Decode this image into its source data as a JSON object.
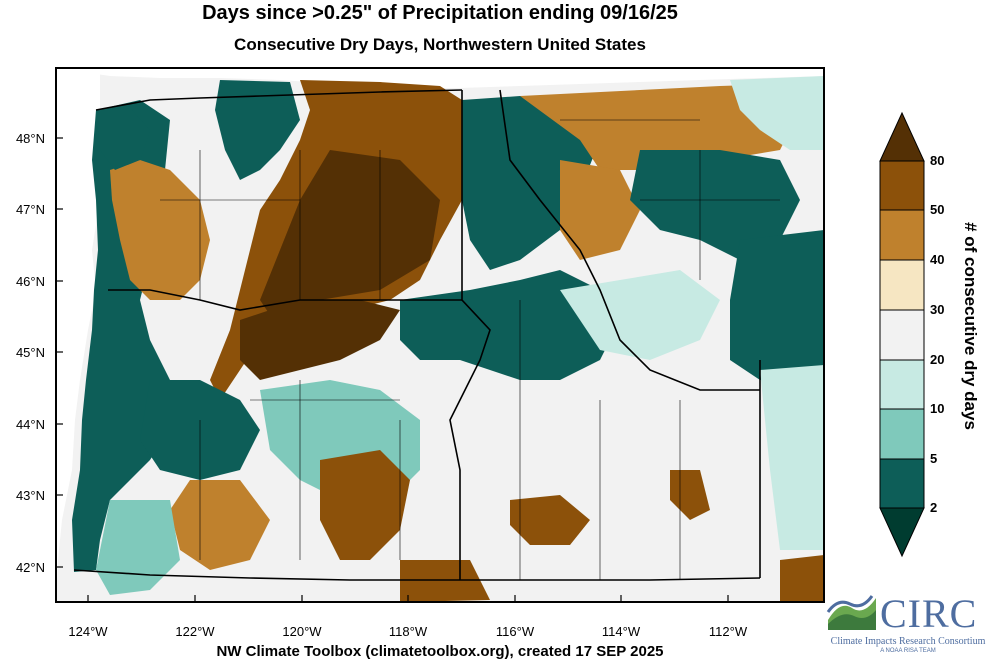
{
  "header": {
    "title": "Days since >0.25\" of Precipitation ending 09/16/25",
    "subtitle": "Consecutive Dry Days, Northwestern United States"
  },
  "footer": {
    "credit": "NW Climate Toolbox (climatetoolbox.org), created 17 SEP 2025"
  },
  "map": {
    "latitude_labels": [
      "48°N",
      "47°N",
      "46°N",
      "45°N",
      "44°N",
      "43°N",
      "42°N"
    ],
    "longitude_labels": [
      "124°W",
      "122°W",
      "120°W",
      "118°W",
      "116°W",
      "114°W",
      "112°W"
    ],
    "colors": {
      "bin_2_5": "#0d5e58",
      "bin_5_10": "#7fc9bb",
      "bin_10_20": "#c7eae3",
      "bin_20_30": "#f2f2f2",
      "bin_30_40": "#f6e6c2",
      "bin_40_50": "#bf812d",
      "bin_50_80": "#8c510a",
      "bin_over_80": "#543005",
      "bin_under_2": "#003c30",
      "water": "#ffffff"
    }
  },
  "legend": {
    "title": "# of consecutive dry days",
    "labels": [
      "2",
      "5",
      "10",
      "20",
      "30",
      "40",
      "50",
      "80"
    ],
    "colors": [
      "#003c30",
      "#0d5e58",
      "#7fc9bb",
      "#c7eae3",
      "#f2f2f2",
      "#f6e6c2",
      "#bf812d",
      "#8c510a",
      "#543005"
    ]
  },
  "logo": {
    "name": "CIRC",
    "tagline": "Climate Impacts Research Consortium",
    "subtag": "A NOAA RISA TEAM"
  }
}
